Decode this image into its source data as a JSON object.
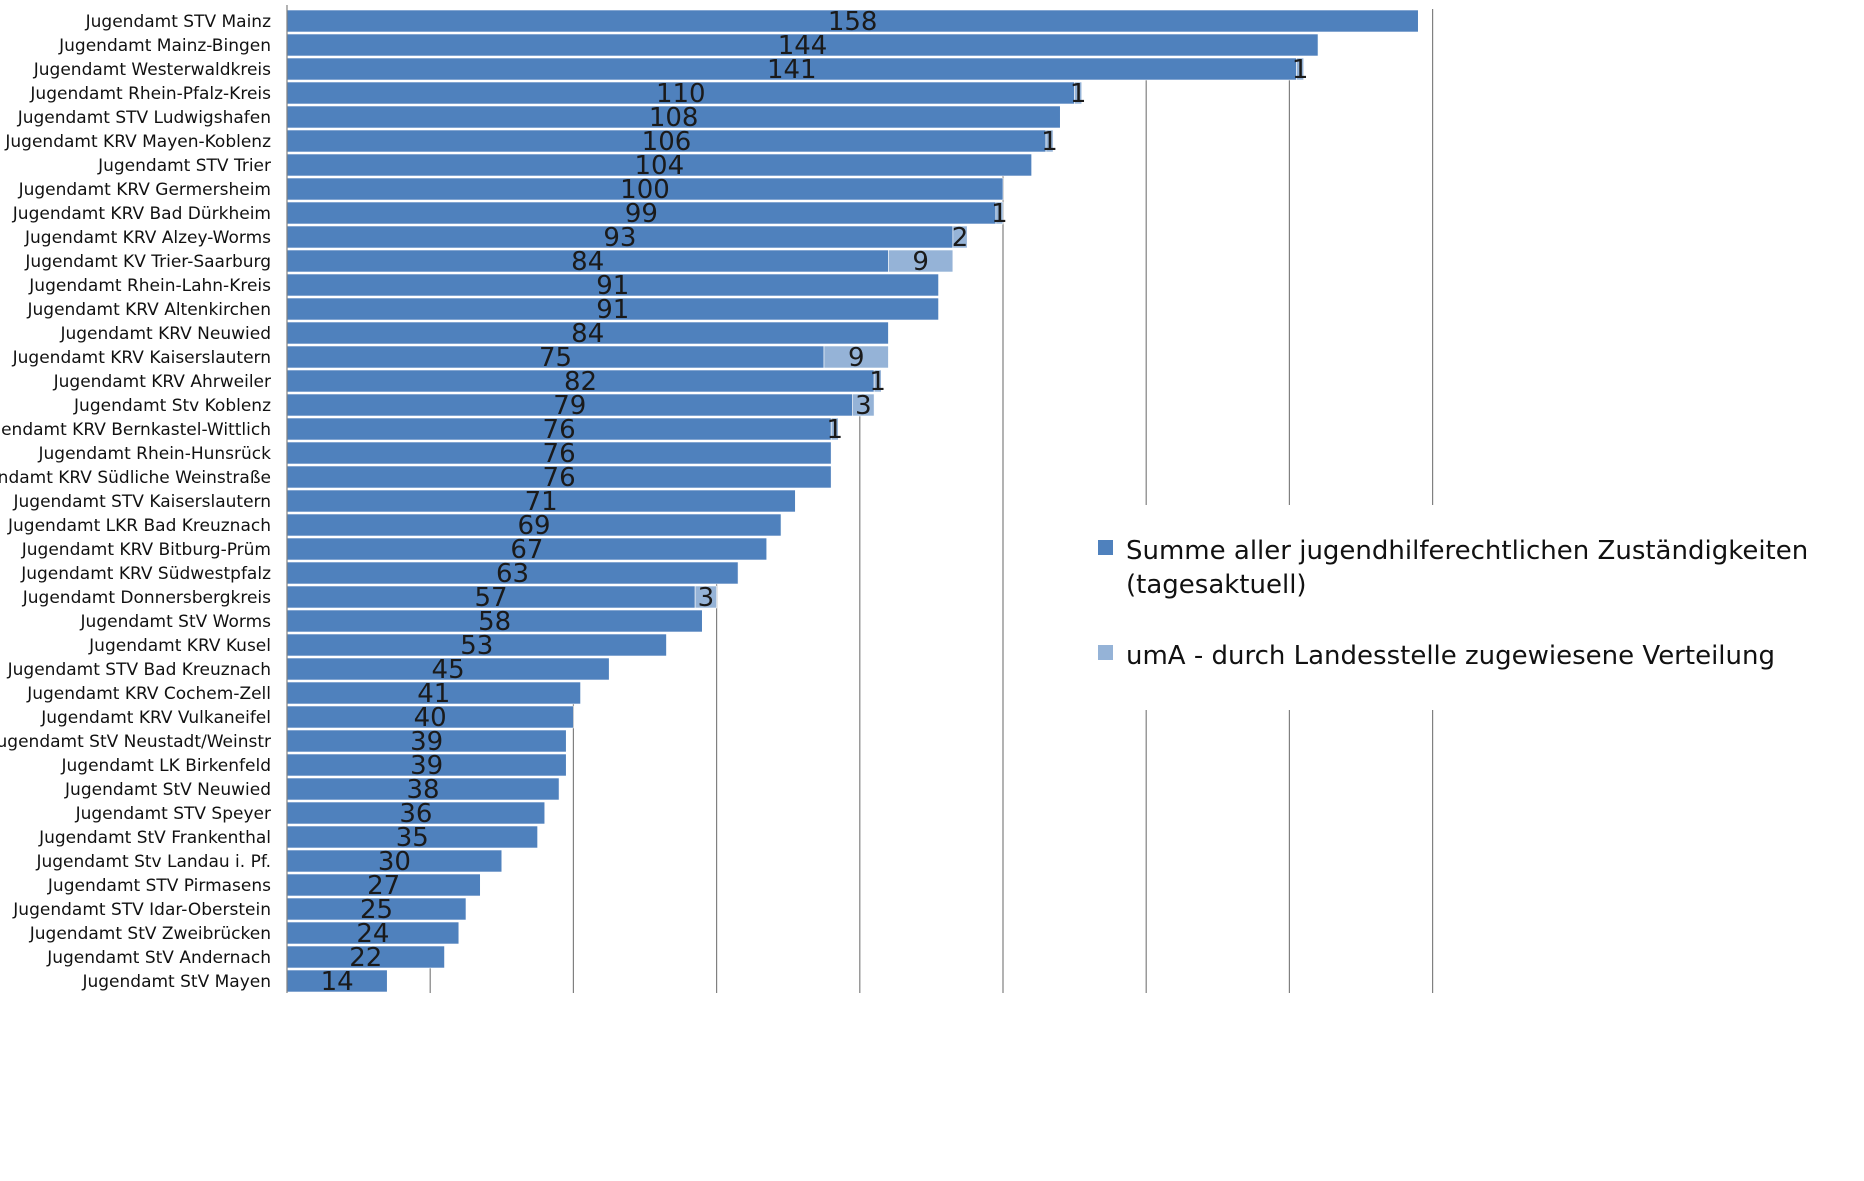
{
  "chart_data": {
    "type": "bar",
    "orientation": "horizontal",
    "stacked": true,
    "categories": [
      "Jugendamt STV Mainz",
      "Jugendamt Mainz-Bingen",
      "Jugendamt Westerwaldkreis",
      "Jugendamt Rhein-Pfalz-Kreis",
      "Jugendamt STV Ludwigshafen",
      "Jugendamt KRV Mayen-Koblenz",
      "Jugendamt STV Trier",
      "Jugendamt KRV Germersheim",
      "Jugendamt KRV Bad Dürkheim",
      "Jugendamt KRV Alzey-Worms",
      "Jugendamt KV Trier-Saarburg",
      "Jugendamt Rhein-Lahn-Kreis",
      "Jugendamt KRV Altenkirchen",
      "Jugendamt KRV Neuwied",
      "Jugendamt KRV Kaiserslautern",
      "Jugendamt KRV Ahrweiler",
      "Jugendamt Stv Koblenz",
      "Jugendamt KRV Bernkastel-Wittlich",
      "Jugendamt Rhein-Hunsrück",
      "Jugendamt KRV Südliche Weinstraße",
      "Jugendamt STV Kaiserslautern",
      "Jugendamt LKR Bad Kreuznach",
      "Jugendamt KRV Bitburg-Prüm",
      "Jugendamt KRV Südwestpfalz",
      "Jugendamt Donnersbergkreis",
      "Jugendamt StV Worms",
      "Jugendamt KRV Kusel",
      "Jugendamt STV Bad Kreuznach",
      "Jugendamt KRV Cochem-Zell",
      "Jugendamt KRV Vulkaneifel",
      "Jugendamt StV Neustadt/Weinstr",
      "Jugendamt LK Birkenfeld",
      "Jugendamt StV Neuwied",
      "Jugendamt STV Speyer",
      "Jugendamt StV Frankenthal",
      "Jugendamt Stv Landau i. Pf.",
      "Jugendamt STV Pirmasens",
      "Jugendamt STV Idar-Oberstein",
      "Jugendamt StV Zweibrücken",
      "Jugendamt StV Andernach",
      "Jugendamt StV Mayen"
    ],
    "series": [
      {
        "name": "Summe aller jugendhilferechtlichen Zuständigkeiten (tagesaktuell)",
        "color": "#4f81bd",
        "values": [
          158,
          144,
          141,
          110,
          108,
          106,
          104,
          100,
          99,
          93,
          84,
          91,
          91,
          84,
          75,
          82,
          79,
          76,
          76,
          76,
          71,
          69,
          67,
          63,
          57,
          58,
          53,
          45,
          41,
          40,
          39,
          39,
          38,
          36,
          35,
          30,
          27,
          25,
          24,
          22,
          14
        ]
      },
      {
        "name": "umA - durch Landesstelle zugewiesene Verteilung",
        "color": "#95b3d7",
        "values": [
          null,
          null,
          1,
          1,
          null,
          1,
          null,
          null,
          1,
          2,
          9,
          null,
          null,
          null,
          9,
          1,
          3,
          1,
          null,
          null,
          null,
          null,
          null,
          null,
          3,
          null,
          null,
          null,
          null,
          null,
          null,
          null,
          null,
          null,
          null,
          null,
          null,
          null,
          null,
          null,
          null
        ]
      }
    ],
    "legend_lines": [
      [
        "Summe aller jugendhilferechtlichen Zuständigkeiten",
        "(tagesaktuell)"
      ],
      [
        "umA - durch Landesstelle zugewiesene Verteilung"
      ]
    ],
    "xlim": [
      0,
      160
    ],
    "x_gridline_step": 20,
    "grid": true,
    "gridline_color": "#808080",
    "legend_position": "right"
  }
}
